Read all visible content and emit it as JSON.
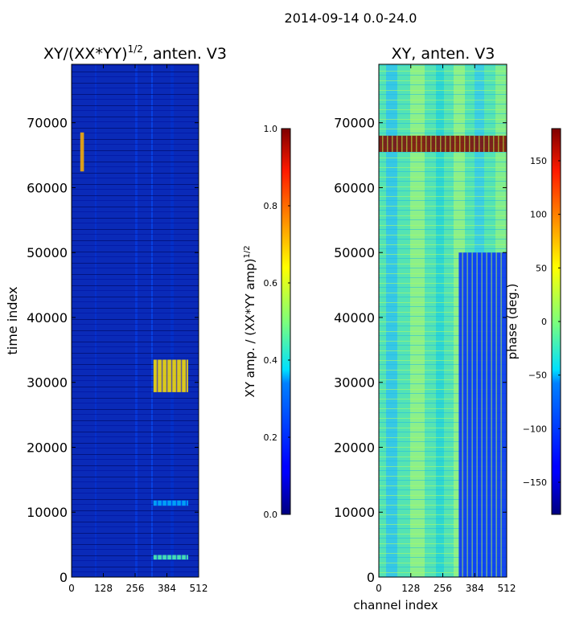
{
  "suptitle": "2014-09-14 0.0-24.0",
  "chart_data": [
    {
      "type": "heatmap",
      "title_main": "XY/(XX*YY)",
      "title_exp": "1/2",
      "title_rest": ", anten. V3",
      "ylabel": "time index",
      "xlabel": "",
      "xlim": [
        0,
        512
      ],
      "ylim": [
        0,
        79000
      ],
      "xticks": [
        0,
        128,
        256,
        384,
        512
      ],
      "yticks": [
        0,
        10000,
        20000,
        30000,
        40000,
        50000,
        60000,
        70000
      ],
      "colormap": "jet",
      "colorbar": {
        "label_main": "XY amp. / (XX*YY amp)",
        "label_exp": "1/2",
        "range": [
          0.0,
          1.0
        ],
        "ticks": [
          0.0,
          0.2,
          0.4,
          0.6,
          0.8,
          1.0
        ],
        "tick_labels": [
          "0.0",
          "0.2",
          "0.4",
          "0.6",
          "0.8",
          "1.0"
        ]
      },
      "background_value": 0.1,
      "features": [
        {
          "label": "high-amplitude block",
          "x": [
            330,
            470
          ],
          "y": [
            28500,
            33500
          ],
          "value": 0.65
        },
        {
          "label": "low band",
          "x": [
            330,
            470
          ],
          "y": [
            2700,
            3400
          ],
          "value": 0.45
        },
        {
          "label": "weak band",
          "x": [
            330,
            470
          ],
          "y": [
            11000,
            11800
          ],
          "value": 0.3
        },
        {
          "label": "spike",
          "x": [
            35,
            50
          ],
          "y": [
            62500,
            68500
          ],
          "value": 0.7
        }
      ]
    },
    {
      "type": "heatmap",
      "title_main": "XY, anten. V3",
      "ylabel": "",
      "xlabel": "channel index",
      "xlim": [
        0,
        512
      ],
      "ylim": [
        0,
        79000
      ],
      "xticks": [
        0,
        128,
        256,
        384,
        512
      ],
      "yticks": [
        0,
        10000,
        20000,
        30000,
        40000,
        50000,
        60000,
        70000
      ],
      "colormap": "jet",
      "colorbar": {
        "label_main": "phase (deg.)",
        "range": [
          -180,
          180
        ],
        "ticks": [
          -150,
          -100,
          -50,
          0,
          50,
          100,
          150
        ],
        "tick_labels": [
          "−150",
          "−100",
          "−50",
          "0",
          "50",
          "100",
          "150"
        ]
      },
      "background_value": 20,
      "features": [
        {
          "label": "saturated RFI rows",
          "x": [
            0,
            512
          ],
          "y": [
            65500,
            68000
          ],
          "value": 180
        },
        {
          "label": "noisy phase region",
          "x": [
            320,
            512
          ],
          "y": [
            0,
            50000
          ],
          "value": -120
        }
      ]
    }
  ]
}
